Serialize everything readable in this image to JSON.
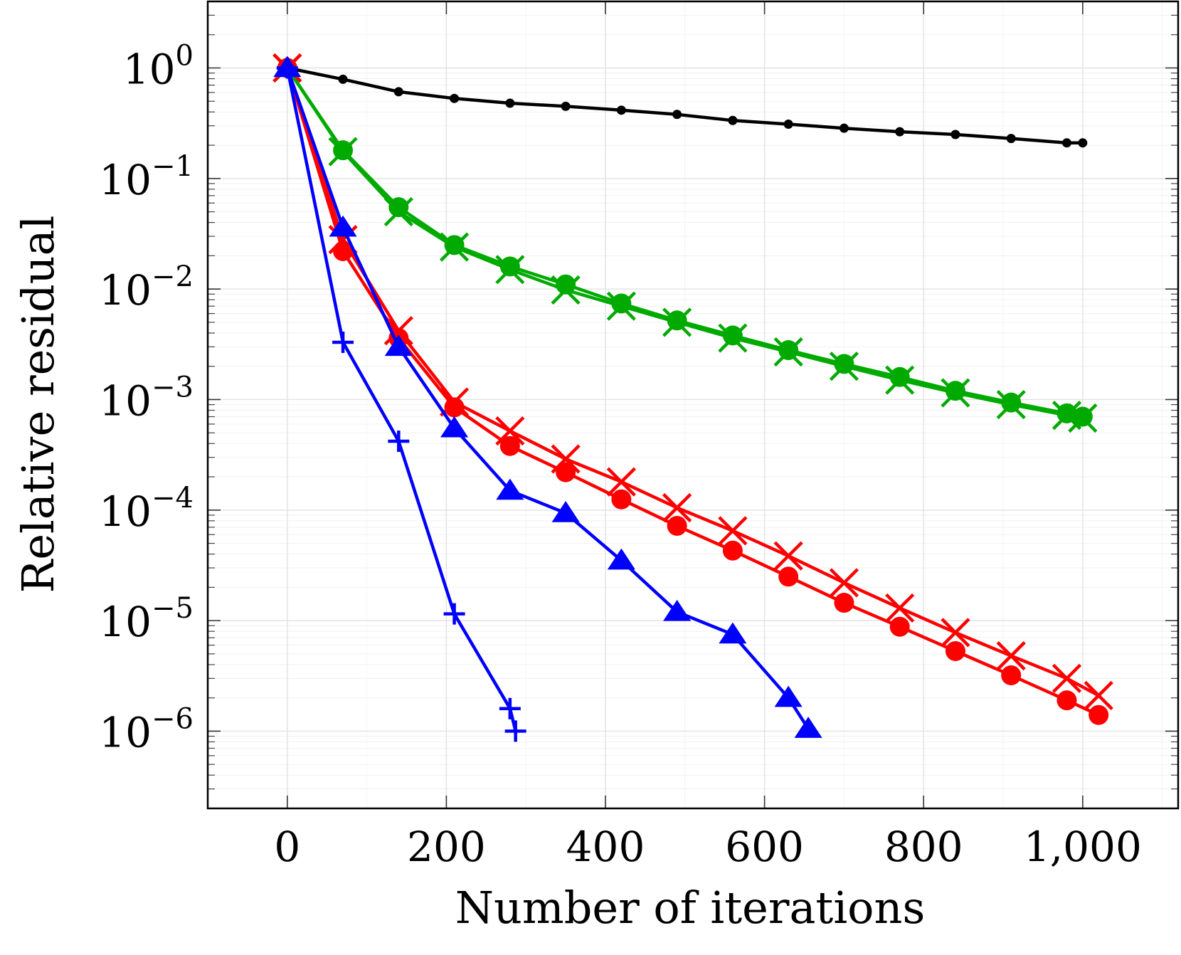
{
  "chart_data": {
    "type": "line",
    "title": "",
    "xlabel": "Number of iterations",
    "ylabel": "Relative residual",
    "xlim": [
      -100,
      1120
    ],
    "ylim": [
      2e-07,
      4
    ],
    "yscale": "log",
    "grid": true,
    "legend": "none",
    "x_ticks": [
      0,
      200,
      400,
      600,
      800,
      1000
    ],
    "x_tick_labels": [
      "0",
      "200",
      "400",
      "600",
      "800",
      "1,000"
    ],
    "y_ticks": [
      1,
      0.1,
      0.01,
      0.001,
      0.0001,
      1e-05,
      1e-06
    ],
    "y_tick_labels": [
      {
        "base": "10",
        "exp": "0"
      },
      {
        "base": "10",
        "exp": "−1"
      },
      {
        "base": "10",
        "exp": "−2"
      },
      {
        "base": "10",
        "exp": "−3"
      },
      {
        "base": "10",
        "exp": "−4"
      },
      {
        "base": "10",
        "exp": "−5"
      },
      {
        "base": "10",
        "exp": "−6"
      }
    ],
    "series": [
      {
        "color": "#000000",
        "marker": "small-circle",
        "x": [
          0,
          70,
          140,
          210,
          280,
          350,
          420,
          490,
          560,
          630,
          700,
          770,
          840,
          910,
          980,
          1000
        ],
        "y": [
          1.0,
          0.79,
          0.61,
          0.53,
          0.48,
          0.45,
          0.415,
          0.38,
          0.335,
          0.31,
          0.285,
          0.265,
          0.25,
          0.23,
          0.21,
          0.21
        ]
      },
      {
        "color": "#00aa00",
        "marker": "circle",
        "x": [
          0,
          70,
          140,
          210,
          280,
          350,
          420,
          490,
          560,
          630,
          700,
          770,
          840,
          910,
          980,
          1000
        ],
        "y": [
          1.0,
          0.18,
          0.055,
          0.025,
          0.016,
          0.011,
          0.0074,
          0.0052,
          0.0038,
          0.0028,
          0.0021,
          0.0016,
          0.0012,
          0.00094,
          0.00075,
          0.0007
        ]
      },
      {
        "color": "#00aa00",
        "marker": "cross",
        "x": [
          0,
          70,
          140,
          210,
          280,
          350,
          420,
          490,
          560,
          630,
          700,
          770,
          840,
          910,
          980,
          1000
        ],
        "y": [
          1.0,
          0.175,
          0.05,
          0.024,
          0.015,
          0.0098,
          0.007,
          0.005,
          0.0036,
          0.0027,
          0.002,
          0.0015,
          0.00115,
          0.0009,
          0.00072,
          0.00068
        ]
      },
      {
        "color": "#ff0000",
        "marker": "circle",
        "x": [
          0,
          70,
          140,
          210,
          280,
          350,
          420,
          490,
          560,
          630,
          700,
          770,
          840,
          910,
          980,
          1020
        ],
        "y": [
          1.0,
          0.022,
          0.0036,
          0.00085,
          0.00038,
          0.00022,
          0.000125,
          7.2e-05,
          4.3e-05,
          2.5e-05,
          1.45e-05,
          8.8e-06,
          5.3e-06,
          3.2e-06,
          1.9e-06,
          1.4e-06
        ]
      },
      {
        "color": "#ff0000",
        "marker": "cross",
        "x": [
          0,
          70,
          140,
          210,
          280,
          350,
          420,
          490,
          560,
          630,
          700,
          770,
          840,
          910,
          980,
          1020
        ],
        "y": [
          1.0,
          0.028,
          0.0042,
          0.00095,
          0.00052,
          0.00029,
          0.00018,
          0.000105,
          6.5e-05,
          3.85e-05,
          2.2e-05,
          1.3e-05,
          7.8e-06,
          4.8e-06,
          3e-06,
          2.1e-06
        ]
      },
      {
        "color": "#0000ff",
        "marker": "triangle",
        "x": [
          0,
          70,
          140,
          210,
          280,
          350,
          420,
          490,
          560,
          630,
          655
        ],
        "y": [
          1.0,
          0.036,
          0.003,
          0.00055,
          0.00015,
          9.4e-05,
          3.5e-05,
          1.2e-05,
          7.5e-06,
          2e-06,
          1.05e-06
        ]
      },
      {
        "color": "#0000ff",
        "marker": "plus",
        "x": [
          0,
          70,
          140,
          210,
          280,
          287
        ],
        "y": [
          1.0,
          0.0033,
          0.00042,
          1.15e-05,
          1.6e-06,
          1e-06
        ]
      }
    ]
  }
}
